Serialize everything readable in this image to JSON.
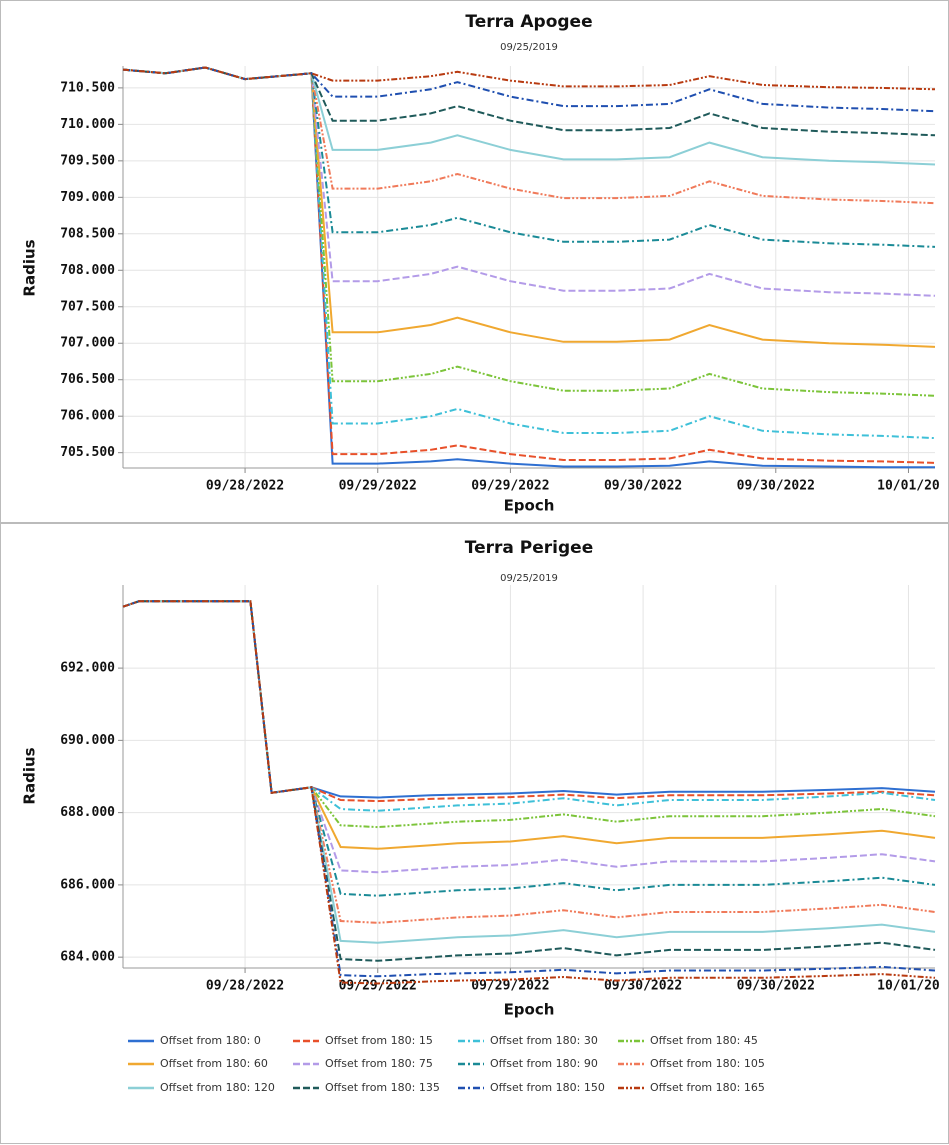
{
  "chart_data": [
    {
      "type": "line",
      "title": "Terra Apogee",
      "subtitle": "09/25/2019",
      "x_label": "Epoch",
      "y_label": "Radius",
      "x": [
        28.04,
        28.2,
        28.35,
        28.5,
        28.75,
        28.83,
        29.0,
        29.2,
        29.3,
        29.5,
        29.7,
        29.9,
        30.1,
        30.25,
        30.45,
        30.7,
        30.9,
        31.1
      ],
      "xlim": [
        28.04,
        31.1
      ],
      "xticks": [
        {
          "value": 28.5,
          "label": "09/28/2022"
        },
        {
          "value": 29.0,
          "label": "09/29/2022"
        },
        {
          "value": 29.5,
          "label": "09/29/2022"
        },
        {
          "value": 30.0,
          "label": "09/30/2022"
        },
        {
          "value": 30.5,
          "label": "09/30/2022"
        },
        {
          "value": 31.0,
          "label": "10/01/20"
        }
      ],
      "ylim": [
        705.29,
        710.8
      ],
      "yticks": [
        {
          "value": 705.5,
          "label": "705.500"
        },
        {
          "value": 706.0,
          "label": "706.000"
        },
        {
          "value": 706.5,
          "label": "706.500"
        },
        {
          "value": 707.0,
          "label": "707.000"
        },
        {
          "value": 707.5,
          "label": "707.500"
        },
        {
          "value": 708.0,
          "label": "708.000"
        },
        {
          "value": 708.5,
          "label": "708.500"
        },
        {
          "value": 709.0,
          "label": "709.000"
        },
        {
          "value": 709.5,
          "label": "709.500"
        },
        {
          "value": 710.0,
          "label": "710.000"
        },
        {
          "value": 710.5,
          "label": "710.500"
        }
      ],
      "grid": true,
      "series": [
        {
          "name": "Offset from 180: 0",
          "color": "#2e6fd1",
          "dash": "solid",
          "values": [
            710.75,
            710.7,
            710.78,
            710.62,
            710.7,
            705.35,
            705.35,
            705.38,
            705.41,
            705.35,
            705.31,
            705.31,
            705.32,
            705.38,
            705.32,
            705.31,
            705.3,
            705.3
          ]
        },
        {
          "name": "Offset from 180: 15",
          "color": "#e8502a",
          "dash": "dashed",
          "values": [
            710.75,
            710.7,
            710.78,
            710.62,
            710.7,
            705.48,
            705.48,
            705.54,
            705.6,
            705.48,
            705.4,
            705.4,
            705.42,
            705.54,
            705.42,
            705.39,
            705.38,
            705.36
          ]
        },
        {
          "name": "Offset from 180: 30",
          "color": "#3ec0d8",
          "dash": "dashdot",
          "values": [
            710.75,
            710.7,
            710.78,
            710.62,
            710.7,
            705.9,
            705.9,
            706.0,
            706.1,
            705.9,
            705.77,
            705.77,
            705.8,
            706.0,
            705.8,
            705.75,
            705.73,
            705.7
          ]
        },
        {
          "name": "Offset from 180: 45",
          "color": "#7cc43a",
          "dash": "dashdotdot",
          "values": [
            710.75,
            710.7,
            710.78,
            710.62,
            710.7,
            706.48,
            706.48,
            706.58,
            706.68,
            706.48,
            706.35,
            706.35,
            706.38,
            706.58,
            706.38,
            706.33,
            706.31,
            706.28
          ]
        },
        {
          "name": "Offset from 180: 60",
          "color": "#f0a830",
          "dash": "solid",
          "values": [
            710.75,
            710.7,
            710.78,
            710.62,
            710.7,
            707.15,
            707.15,
            707.25,
            707.35,
            707.15,
            707.02,
            707.02,
            707.05,
            707.25,
            707.05,
            707.0,
            706.98,
            706.95
          ]
        },
        {
          "name": "Offset from 180: 75",
          "color": "#b39be8",
          "dash": "dashed",
          "values": [
            710.75,
            710.7,
            710.78,
            710.62,
            710.7,
            707.85,
            707.85,
            707.95,
            708.05,
            707.85,
            707.72,
            707.72,
            707.75,
            707.95,
            707.75,
            707.7,
            707.68,
            707.65
          ]
        },
        {
          "name": "Offset from 180: 90",
          "color": "#1a8a96",
          "dash": "dashdot",
          "values": [
            710.75,
            710.7,
            710.78,
            710.62,
            710.7,
            708.52,
            708.52,
            708.62,
            708.72,
            708.52,
            708.39,
            708.39,
            708.42,
            708.62,
            708.42,
            708.37,
            708.35,
            708.32
          ]
        },
        {
          "name": "Offset from 180: 105",
          "color": "#f07a5a",
          "dash": "dashdotdot",
          "values": [
            710.75,
            710.7,
            710.78,
            710.62,
            710.7,
            709.12,
            709.12,
            709.22,
            709.32,
            709.12,
            708.99,
            708.99,
            709.02,
            709.22,
            709.02,
            708.97,
            708.95,
            708.92
          ]
        },
        {
          "name": "Offset from 180: 120",
          "color": "#8ccfd6",
          "dash": "solid",
          "values": [
            710.75,
            710.7,
            710.78,
            710.62,
            710.7,
            709.65,
            709.65,
            709.75,
            709.85,
            709.65,
            709.52,
            709.52,
            709.55,
            709.75,
            709.55,
            709.5,
            709.48,
            709.45
          ]
        },
        {
          "name": "Offset from 180: 135",
          "color": "#1f5a5a",
          "dash": "dashed",
          "values": [
            710.75,
            710.7,
            710.78,
            710.62,
            710.7,
            710.05,
            710.05,
            710.15,
            710.25,
            710.05,
            709.92,
            709.92,
            709.95,
            710.15,
            709.95,
            709.9,
            709.88,
            709.85
          ]
        },
        {
          "name": "Offset from 180: 150",
          "color": "#1f4fb0",
          "dash": "dashdot",
          "values": [
            710.75,
            710.7,
            710.78,
            710.62,
            710.7,
            710.38,
            710.38,
            710.48,
            710.58,
            710.38,
            710.25,
            710.25,
            710.28,
            710.48,
            710.28,
            710.23,
            710.21,
            710.18
          ]
        },
        {
          "name": "Offset from 180: 165",
          "color": "#b83a10",
          "dash": "dashdotdot",
          "values": [
            710.75,
            710.7,
            710.78,
            710.62,
            710.7,
            710.6,
            710.6,
            710.66,
            710.72,
            710.6,
            710.52,
            710.52,
            710.54,
            710.66,
            710.54,
            710.51,
            710.5,
            710.48
          ]
        }
      ]
    },
    {
      "type": "line",
      "title": "Terra Perigee",
      "subtitle": "09/25/2019",
      "x_label": "Epoch",
      "y_label": "Radius",
      "legend": "bottom",
      "x": [
        28.04,
        28.1,
        28.3,
        28.52,
        28.6,
        28.75,
        28.86,
        29.0,
        29.2,
        29.3,
        29.5,
        29.7,
        29.9,
        30.1,
        30.25,
        30.45,
        30.7,
        30.9,
        31.1
      ],
      "xlim": [
        28.04,
        31.1
      ],
      "xticks": [
        {
          "value": 28.5,
          "label": "09/28/2022"
        },
        {
          "value": 29.0,
          "label": "09/29/2022"
        },
        {
          "value": 29.5,
          "label": "09/29/2022"
        },
        {
          "value": 30.0,
          "label": "09/30/2022"
        },
        {
          "value": 30.5,
          "label": "09/30/2022"
        },
        {
          "value": 31.0,
          "label": "10/01/20"
        }
      ],
      "ylim": [
        683.7,
        694.3
      ],
      "yticks": [
        {
          "value": 684,
          "label": "684.000"
        },
        {
          "value": 686,
          "label": "686.000"
        },
        {
          "value": 688,
          "label": "688.000"
        },
        {
          "value": 690,
          "label": "690.000"
        },
        {
          "value": 692,
          "label": "692.000"
        }
      ],
      "grid": true,
      "series": [
        {
          "name": "Offset from 180: 0",
          "color": "#2e6fd1",
          "dash": "solid",
          "values": [
            693.7,
            693.85,
            693.85,
            693.85,
            688.55,
            688.7,
            688.45,
            688.42,
            688.48,
            688.5,
            688.53,
            688.6,
            688.5,
            688.58,
            688.58,
            688.58,
            688.63,
            688.68,
            688.58
          ]
        },
        {
          "name": "Offset from 180: 15",
          "color": "#e8502a",
          "dash": "dashed",
          "values": [
            693.7,
            693.85,
            693.85,
            693.85,
            688.55,
            688.7,
            688.35,
            688.32,
            688.38,
            688.4,
            688.43,
            688.5,
            688.4,
            688.48,
            688.48,
            688.48,
            688.53,
            688.58,
            688.48
          ]
        },
        {
          "name": "Offset from 180: 30",
          "color": "#3ec0d8",
          "dash": "dashdot",
          "values": [
            693.7,
            693.85,
            693.85,
            693.85,
            688.55,
            688.7,
            688.1,
            688.05,
            688.15,
            688.2,
            688.25,
            688.4,
            688.2,
            688.35,
            688.35,
            688.35,
            688.45,
            688.55,
            688.35
          ]
        },
        {
          "name": "Offset from 180: 45",
          "color": "#7cc43a",
          "dash": "dashdotdot",
          "values": [
            693.7,
            693.85,
            693.85,
            693.85,
            688.55,
            688.7,
            687.65,
            687.6,
            687.7,
            687.75,
            687.8,
            687.95,
            687.75,
            687.9,
            687.9,
            687.9,
            688.0,
            688.1,
            687.9
          ]
        },
        {
          "name": "Offset from 180: 60",
          "color": "#f0a830",
          "dash": "solid",
          "values": [
            693.7,
            693.85,
            693.85,
            693.85,
            688.55,
            688.7,
            687.05,
            687.0,
            687.1,
            687.15,
            687.2,
            687.35,
            687.15,
            687.3,
            687.3,
            687.3,
            687.4,
            687.5,
            687.3
          ]
        },
        {
          "name": "Offset from 180: 75",
          "color": "#b39be8",
          "dash": "dashed",
          "values": [
            693.7,
            693.85,
            693.85,
            693.85,
            688.55,
            688.7,
            686.4,
            686.35,
            686.45,
            686.5,
            686.55,
            686.7,
            686.5,
            686.65,
            686.65,
            686.65,
            686.75,
            686.85,
            686.65
          ]
        },
        {
          "name": "Offset from 180: 90",
          "color": "#1a8a96",
          "dash": "dashdot",
          "values": [
            693.7,
            693.85,
            693.85,
            693.85,
            688.55,
            688.7,
            685.75,
            685.7,
            685.8,
            685.85,
            685.9,
            686.05,
            685.85,
            686.0,
            686.0,
            686.0,
            686.1,
            686.2,
            686.0
          ]
        },
        {
          "name": "Offset from 180: 105",
          "color": "#f07a5a",
          "dash": "dashdotdot",
          "values": [
            693.7,
            693.85,
            693.85,
            693.85,
            688.55,
            688.7,
            685.0,
            684.95,
            685.05,
            685.1,
            685.15,
            685.3,
            685.1,
            685.25,
            685.25,
            685.25,
            685.35,
            685.45,
            685.25
          ]
        },
        {
          "name": "Offset from 180: 120",
          "color": "#8ccfd6",
          "dash": "solid",
          "values": [
            693.7,
            693.85,
            693.85,
            693.85,
            688.55,
            688.7,
            684.45,
            684.4,
            684.5,
            684.55,
            684.6,
            684.75,
            684.55,
            684.7,
            684.7,
            684.7,
            684.8,
            684.9,
            684.7
          ]
        },
        {
          "name": "Offset from 180: 135",
          "color": "#1f5a5a",
          "dash": "dashed",
          "values": [
            693.7,
            693.85,
            693.85,
            693.85,
            688.55,
            688.7,
            683.95,
            683.9,
            684.0,
            684.05,
            684.1,
            684.25,
            684.05,
            684.2,
            684.2,
            684.2,
            684.3,
            684.4,
            684.2
          ]
        },
        {
          "name": "Offset from 180: 150",
          "color": "#1f4fb0",
          "dash": "dashdot",
          "values": [
            693.7,
            693.85,
            693.85,
            693.85,
            688.55,
            688.7,
            683.5,
            683.47,
            683.53,
            683.55,
            683.58,
            683.65,
            683.55,
            683.63,
            683.63,
            683.63,
            683.68,
            683.73,
            683.63
          ]
        },
        {
          "name": "Offset from 180: 165",
          "color": "#b83a10",
          "dash": "dashdotdot",
          "values": [
            693.7,
            693.85,
            693.85,
            693.85,
            688.55,
            688.7,
            683.3,
            683.27,
            683.33,
            683.35,
            683.38,
            683.45,
            683.35,
            683.43,
            683.43,
            683.43,
            683.48,
            683.53,
            683.43
          ]
        }
      ]
    }
  ]
}
